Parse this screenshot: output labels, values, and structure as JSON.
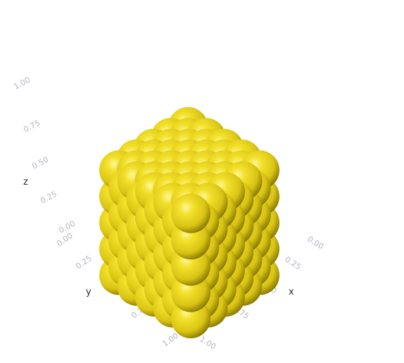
{
  "chart_data": {
    "type": "scatter3d",
    "description_free": true,
    "lattice": "face-centered cubic nanoparticle of spheres",
    "marker_color": "#e6d21e",
    "marker_highlight": "#fff79a",
    "marker_shadow": "#8a7a00",
    "xlabel": "x",
    "ylabel": "y",
    "zlabel": "z",
    "x_ticks": [
      "0.00",
      "0.25",
      "0.50",
      "0.75",
      "1.00"
    ],
    "y_ticks": [
      "0.00",
      "0.25",
      "0.50",
      "0.75",
      "1.00"
    ],
    "z_ticks": [
      "0.00",
      "0.25",
      "0.50",
      "0.75",
      "1.00"
    ],
    "xlim": [
      0,
      1
    ],
    "ylim": [
      0,
      1
    ],
    "zlim": [
      0,
      1
    ],
    "grid_steps": 8,
    "grid": false,
    "legend": "none"
  }
}
